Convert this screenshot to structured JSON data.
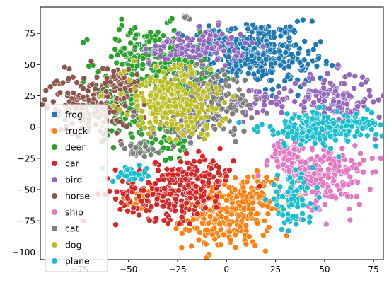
{
  "chart_data": {
    "type": "scatter",
    "title": "",
    "xlabel": "",
    "ylabel": "",
    "xlim": [
      -95,
      80
    ],
    "ylim": [
      -106,
      96
    ],
    "x_ticks": [
      -75,
      -50,
      -25,
      0,
      25,
      50,
      75
    ],
    "y_ticks": [
      -100,
      -75,
      -50,
      -25,
      0,
      25,
      50,
      75
    ],
    "x_tick_labels": [
      "−75",
      "−50",
      "−25",
      "0",
      "25",
      "50",
      "75"
    ],
    "y_tick_labels": [
      "−100",
      "−75",
      "−50",
      "−25",
      "0",
      "25",
      "50",
      "75"
    ],
    "grid": false,
    "legend_position": "center-left",
    "series": [
      {
        "name": "frog",
        "color": "#1f77b4",
        "clusters": [
          {
            "cx": 12,
            "cy": 60,
            "sx": 14,
            "sy": 13,
            "n": 220
          },
          {
            "cx": 30,
            "cy": 52,
            "sx": 10,
            "sy": 14,
            "n": 90
          },
          {
            "cx": -2,
            "cy": 70,
            "sx": 8,
            "sy": 6,
            "n": 50
          }
        ]
      },
      {
        "name": "truck",
        "color": "#ff7f0e",
        "clusters": [
          {
            "cx": 0,
            "cy": -72,
            "sx": 11,
            "sy": 13,
            "n": 220
          },
          {
            "cx": 14,
            "cy": -55,
            "sx": 8,
            "sy": 10,
            "n": 70
          },
          {
            "cx": -45,
            "cy": -58,
            "sx": 4,
            "sy": 4,
            "n": 20
          }
        ]
      },
      {
        "name": "deer",
        "color": "#2ca02c",
        "clusters": [
          {
            "cx": -40,
            "cy": 55,
            "sx": 13,
            "sy": 13,
            "n": 180
          },
          {
            "cx": -55,
            "cy": 20,
            "sx": 8,
            "sy": 12,
            "n": 80
          },
          {
            "cx": -20,
            "cy": 40,
            "sx": 9,
            "sy": 8,
            "n": 60
          },
          {
            "cx": -35,
            "cy": -12,
            "sx": 10,
            "sy": 8,
            "n": 50
          }
        ]
      },
      {
        "name": "car",
        "color": "#d62728",
        "clusters": [
          {
            "cx": -28,
            "cy": -52,
            "sx": 14,
            "sy": 11,
            "n": 230
          },
          {
            "cx": -12,
            "cy": -38,
            "sx": 8,
            "sy": 8,
            "n": 60
          }
        ]
      },
      {
        "name": "bird",
        "color": "#9467bd",
        "clusters": [
          {
            "cx": 55,
            "cy": 22,
            "sx": 10,
            "sy": 11,
            "n": 150
          },
          {
            "cx": -10,
            "cy": 65,
            "sx": 10,
            "sy": 7,
            "n": 70
          },
          {
            "cx": 20,
            "cy": 20,
            "sx": 10,
            "sy": 6,
            "n": 50
          },
          {
            "cx": -30,
            "cy": 62,
            "sx": 6,
            "sy": 5,
            "n": 30
          }
        ]
      },
      {
        "name": "horse",
        "color": "#8c564b",
        "clusters": [
          {
            "cx": -70,
            "cy": 18,
            "sx": 11,
            "sy": 12,
            "n": 170
          },
          {
            "cx": -55,
            "cy": 38,
            "sx": 6,
            "sy": 5,
            "n": 40
          }
        ]
      },
      {
        "name": "ship",
        "color": "#e377c2",
        "clusters": [
          {
            "cx": 50,
            "cy": -40,
            "sx": 10,
            "sy": 13,
            "n": 210
          },
          {
            "cx": 30,
            "cy": -25,
            "sx": 8,
            "sy": 8,
            "n": 60
          }
        ]
      },
      {
        "name": "cat",
        "color": "#7f7f7f",
        "clusters": [
          {
            "cx": -8,
            "cy": 22,
            "sx": 11,
            "sy": 13,
            "n": 180
          },
          {
            "cx": -22,
            "cy": 5,
            "sx": 8,
            "sy": 8,
            "n": 60
          },
          {
            "cx": -46,
            "cy": -20,
            "sx": 5,
            "sy": 4,
            "n": 25
          },
          {
            "cx": -21,
            "cy": 88,
            "sx": 2,
            "sy": 1,
            "n": 8
          }
        ]
      },
      {
        "name": "dog",
        "color": "#bcbd22",
        "clusters": [
          {
            "cx": -30,
            "cy": 22,
            "sx": 11,
            "sy": 13,
            "n": 200
          },
          {
            "cx": -15,
            "cy": 10,
            "sx": 7,
            "sy": 8,
            "n": 40
          }
        ]
      },
      {
        "name": "plane",
        "color": "#17becf",
        "clusters": [
          {
            "cx": 45,
            "cy": -2,
            "sx": 14,
            "sy": 7,
            "n": 170
          },
          {
            "cx": 33,
            "cy": -58,
            "sx": 6,
            "sy": 9,
            "n": 80
          },
          {
            "cx": 68,
            "cy": 2,
            "sx": 5,
            "sy": 5,
            "n": 40
          },
          {
            "cx": -48,
            "cy": -38,
            "sx": 5,
            "sy": 3,
            "n": 25
          }
        ]
      }
    ]
  }
}
